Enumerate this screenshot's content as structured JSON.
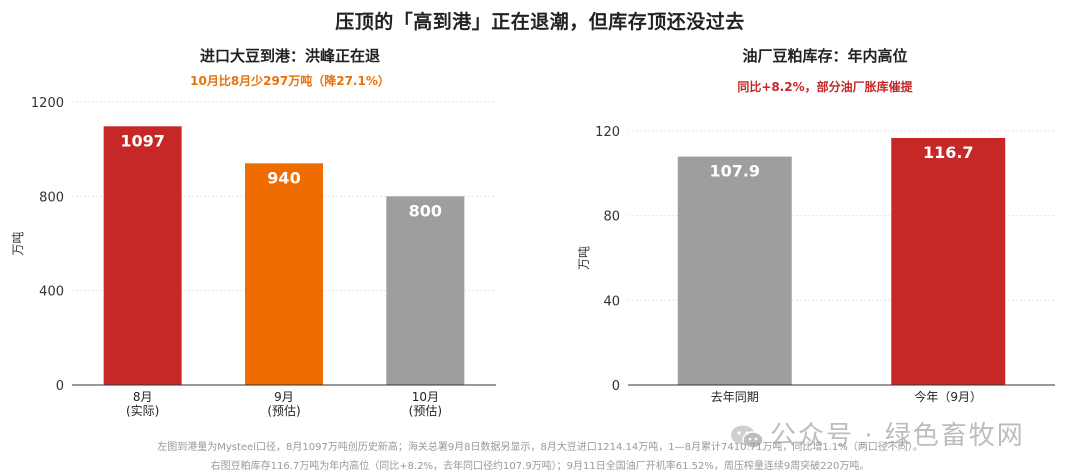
{
  "main_title": "压顶的「高到港」正在退潮，但库存顶还没过去",
  "left_panel": {
    "title": "进口大豆到港：洪峰正在退",
    "subtitle": "10月比8月少297万吨（降27.1%）"
  },
  "right_panel": {
    "title": "油厂豆粕库存：年内高位",
    "subtitle": "同比+8.2%，部分油厂胀库催提"
  },
  "footnote": {
    "line1": "左图到港量为Mysteel口径，8月1097万吨创历史新高；海关总署9月8日数据另显示，8月大豆进口1214.14万吨，1—8月累计7410.71万吨，同比增1.1%（两口径不同）。",
    "line2": "右图豆粕库存116.7万吨为年内高位（同比+8.2%，去年同口径约107.9万吨）；9月11日全国油厂开机率61.52%，周压榨量连续9周突破220万吨。"
  },
  "watermark": "公众号 · 绿色畜牧网",
  "colors": {
    "red": "#c62828",
    "orange": "#ef6c00",
    "gray": "#9e9e9e",
    "axis": "#333333",
    "grid": "#e6e6e6"
  },
  "chart_data": [
    {
      "type": "bar",
      "title": "进口大豆到港：洪峰正在退",
      "subtitle": "10月比8月少297万吨（降27.1%）",
      "categories": [
        [
          "8月",
          "(实际)"
        ],
        [
          "9月",
          "(预估)"
        ],
        [
          "10月",
          "(预估)"
        ]
      ],
      "values": [
        1097,
        940,
        800
      ],
      "bar_colors": [
        "#c62828",
        "#ef6c00",
        "#9e9e9e"
      ],
      "ylabel": "万吨",
      "ylim": [
        0,
        1200
      ],
      "yticks": [
        0,
        400,
        800,
        1200
      ],
      "grid": true,
      "data_labels": true
    },
    {
      "type": "bar",
      "title": "油厂豆粕库存：年内高位",
      "subtitle": "同比+8.2%，部分油厂胀库催提",
      "categories": [
        [
          "去年同期"
        ],
        [
          "今年（9月）"
        ]
      ],
      "values": [
        107.9,
        116.7
      ],
      "bar_colors": [
        "#9e9e9e",
        "#c62828"
      ],
      "ylabel": "万吨",
      "ylim": [
        0,
        120
      ],
      "yticks": [
        0,
        40,
        80,
        120
      ],
      "grid": true,
      "data_labels": true
    }
  ]
}
